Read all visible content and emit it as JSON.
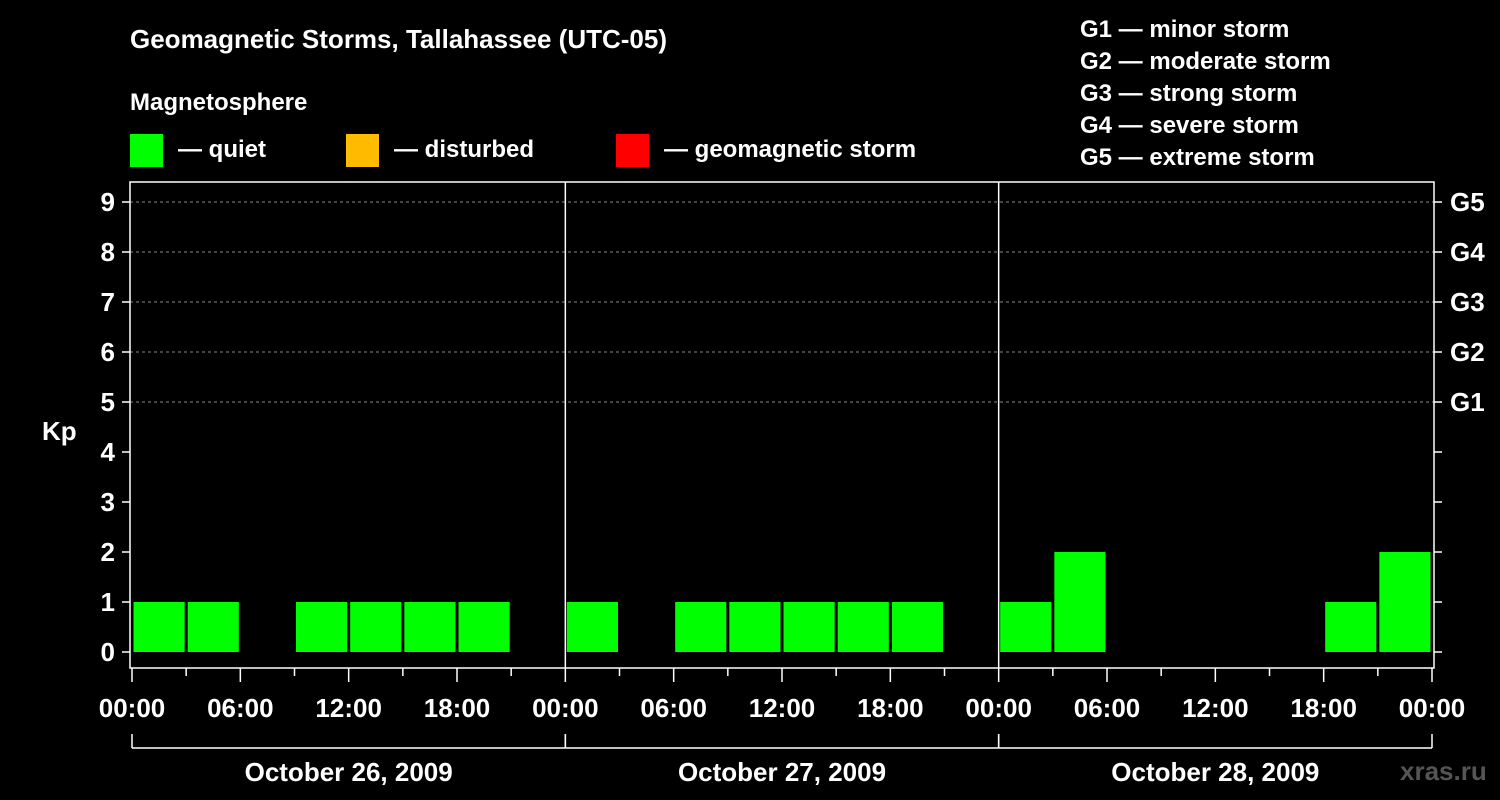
{
  "chart_data": {
    "type": "bar",
    "title": "Geomagnetic Storms, Tallahassee (UTC-05)",
    "ylabel": "Kp",
    "ylim": [
      0,
      9
    ],
    "y_ticks": [
      "0",
      "1",
      "2",
      "3",
      "4",
      "5",
      "6",
      "7",
      "8",
      "9"
    ],
    "grid": "dashed at Kp 5–9",
    "legend": {
      "title": "Magnetosphere",
      "items": [
        {
          "label": "— quiet",
          "color": "#00ff00"
        },
        {
          "label": "— disturbed",
          "color": "#ffbb00"
        },
        {
          "label": "— geomagnetic storm",
          "color": "#ff0000"
        }
      ]
    },
    "storm_scale": [
      "G1 — minor storm",
      "G2 — moderate storm",
      "G3 — strong storm",
      "G4 — severe storm",
      "G5 — extreme storm"
    ],
    "right_axis_labels": [
      {
        "label": "G1",
        "kp": 5
      },
      {
        "label": "G2",
        "kp": 6
      },
      {
        "label": "G3",
        "kp": 7
      },
      {
        "label": "G4",
        "kp": 8
      },
      {
        "label": "G5",
        "kp": 9
      }
    ],
    "x_tick_labels": [
      "00:00",
      "06:00",
      "12:00",
      "18:00",
      "00:00",
      "06:00",
      "12:00",
      "18:00",
      "00:00",
      "06:00",
      "12:00",
      "18:00",
      "00:00"
    ],
    "days": [
      "October 26, 2009",
      "October 27, 2009",
      "October 28, 2009"
    ],
    "series": [
      {
        "interval_hours": 3,
        "values": [
          1,
          1,
          0,
          1,
          1,
          1,
          1,
          0,
          1,
          0,
          1,
          1,
          1,
          1,
          1,
          0,
          1,
          2,
          0,
          0,
          0,
          0,
          1,
          2
        ],
        "colors": [
          "#00ff00",
          "#00ff00",
          "#00ff00",
          "#00ff00",
          "#00ff00",
          "#00ff00",
          "#00ff00",
          "#00ff00",
          "#00ff00",
          "#00ff00",
          "#00ff00",
          "#00ff00",
          "#00ff00",
          "#00ff00",
          "#00ff00",
          "#00ff00",
          "#00ff00",
          "#00ff00",
          "#00ff00",
          "#00ff00",
          "#00ff00",
          "#00ff00",
          "#00ff00",
          "#00ff00"
        ]
      }
    ]
  },
  "watermark": "xras.ru"
}
